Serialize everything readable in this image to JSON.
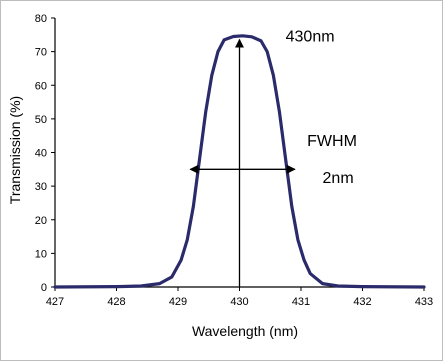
{
  "chart_data": {
    "type": "line",
    "title": "",
    "xlabel": "Wavelength (nm)",
    "ylabel": "Transmission (%)",
    "xlim": [
      427,
      433
    ],
    "ylim": [
      0,
      80
    ],
    "x_ticks": [
      "427",
      "428",
      "429",
      "430",
      "431",
      "432",
      "433"
    ],
    "y_ticks": [
      "0",
      "10",
      "20",
      "30",
      "40",
      "50",
      "60",
      "70",
      "80"
    ],
    "grid": false,
    "line_color": "#2b2b6b",
    "series": [
      {
        "values": [
          [
            427.0,
            0.0
          ],
          [
            428.0,
            0.1
          ],
          [
            428.4,
            0.3
          ],
          [
            428.7,
            1.0
          ],
          [
            428.9,
            3.0
          ],
          [
            429.05,
            8.0
          ],
          [
            429.15,
            14.0
          ],
          [
            429.25,
            24.0
          ],
          [
            429.35,
            38.0
          ],
          [
            429.45,
            52.0
          ],
          [
            429.55,
            63.0
          ],
          [
            429.65,
            70.0
          ],
          [
            429.75,
            73.5
          ],
          [
            429.9,
            74.5
          ],
          [
            430.05,
            74.7
          ],
          [
            430.2,
            74.4
          ],
          [
            430.35,
            73.2
          ],
          [
            430.45,
            70.0
          ],
          [
            430.55,
            63.0
          ],
          [
            430.65,
            52.0
          ],
          [
            430.75,
            38.0
          ],
          [
            430.85,
            24.0
          ],
          [
            430.95,
            14.0
          ],
          [
            431.05,
            8.0
          ],
          [
            431.15,
            4.0
          ],
          [
            431.35,
            1.0
          ],
          [
            431.6,
            0.3
          ],
          [
            432.0,
            0.1
          ],
          [
            433.0,
            0.0
          ]
        ]
      }
    ],
    "annotations": [
      {
        "text": "430nm",
        "x": 430.75,
        "y": 73
      },
      {
        "text": "FWHM",
        "x": 431.1,
        "y": 42
      },
      {
        "text": "2nm",
        "x": 431.35,
        "y": 31
      }
    ],
    "center_line_x": 430.0,
    "fwhm_arrow": {
      "y": 35,
      "x1": 429.2,
      "x2": 430.9
    }
  }
}
